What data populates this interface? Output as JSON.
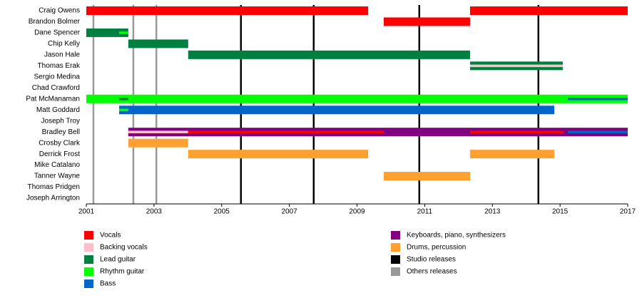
{
  "chart_data": {
    "type": "timeline",
    "xlim": [
      2001,
      2017
    ],
    "xticks": [
      2001,
      2003,
      2005,
      2007,
      2009,
      2011,
      2013,
      2015,
      2017
    ],
    "legend": [
      {
        "name": "Vocals",
        "color": "#ff0000"
      },
      {
        "name": "Backing vocals",
        "color": "#ffc0cb"
      },
      {
        "name": "Lead guitar",
        "color": "#008040"
      },
      {
        "name": "Rhythm guitar",
        "color": "#00ff00"
      },
      {
        "name": "Bass",
        "color": "#0066cc"
      },
      {
        "name": "Keyboards, piano, synthesizers",
        "color": "#800080"
      },
      {
        "name": "Drums, percussion",
        "color": "#ffa030"
      },
      {
        "name": "Studio releases",
        "color": "#000000"
      },
      {
        "name": "Others releases",
        "color": "#999999"
      }
    ],
    "releases": [
      {
        "kind": "Others releases",
        "x": [
          2001.21,
          2002.39,
          2003.07
        ]
      },
      {
        "kind": "Studio releases",
        "x": [
          2005.57,
          2007.72,
          2010.84,
          2014.36
        ]
      }
    ],
    "members": [
      {
        "name": "Craig Owens",
        "periods": [
          {
            "role": "Vocals",
            "start": 2001,
            "end": 2009.33,
            "style": "full"
          },
          {
            "role": "Vocals",
            "start": 2012.34,
            "end": 2017,
            "style": "full"
          }
        ]
      },
      {
        "name": "Brandon Bolmer",
        "periods": [
          {
            "role": "Vocals",
            "start": 2009.79,
            "end": 2012.34,
            "style": "full"
          }
        ]
      },
      {
        "name": "Dane Spencer",
        "periods": [
          {
            "role": "Lead guitar",
            "start": 2001,
            "end": 2002.24,
            "style": "full"
          },
          {
            "role": "Rhythm guitar",
            "start": 2001.97,
            "end": 2002.24,
            "style": "stripe"
          }
        ]
      },
      {
        "name": "Chip Kelly",
        "periods": [
          {
            "role": "Lead guitar",
            "start": 2002.24,
            "end": 2004.01,
            "style": "full"
          }
        ]
      },
      {
        "name": "Jason Hale",
        "periods": [
          {
            "role": "Lead guitar",
            "start": 2004.01,
            "end": 2012.34,
            "style": "full"
          }
        ]
      },
      {
        "name": "Thomas Erak",
        "periods": [
          {
            "role": "Lead guitar",
            "start": 2012.34,
            "end": 2015.08,
            "style": "full"
          },
          {
            "role": "Backing vocals",
            "start": 2012.34,
            "end": 2015.08,
            "style": "stripe"
          }
        ]
      },
      {
        "name": "Sergio Medina",
        "periods": []
      },
      {
        "name": "Chad Crawford",
        "periods": []
      },
      {
        "name": "Pat McManaman",
        "periods": [
          {
            "role": "Rhythm guitar",
            "start": 2001,
            "end": 2017,
            "style": "full"
          },
          {
            "role": "Lead guitar",
            "start": 2001.97,
            "end": 2002.24,
            "style": "stripe"
          },
          {
            "role": "Bass",
            "start": 2015.23,
            "end": 2017,
            "style": "stripe"
          }
        ]
      },
      {
        "name": "Matt Goddard",
        "periods": [
          {
            "role": "Bass",
            "start": 2001.97,
            "end": 2014.83,
            "style": "full"
          },
          {
            "role": "Rhythm guitar",
            "start": 2001.97,
            "end": 2002.24,
            "style": "stripe"
          }
        ]
      },
      {
        "name": "Joseph Troy",
        "periods": []
      },
      {
        "name": "Bradley Bell",
        "periods": [
          {
            "role": "Keyboards, piano, synthesizers",
            "start": 2002.24,
            "end": 2017,
            "style": "full"
          },
          {
            "role": "Backing vocals",
            "start": 2002.24,
            "end": 2004.01,
            "style": "stripe"
          },
          {
            "role": "Vocals",
            "start": 2004.01,
            "end": 2009.79,
            "style": "stripe"
          },
          {
            "role": "Vocals",
            "start": 2012.34,
            "end": 2015.08,
            "style": "stripe"
          },
          {
            "role": "Bass",
            "start": 2015.23,
            "end": 2017,
            "style": "stripe"
          }
        ]
      },
      {
        "name": "Crosby Clark",
        "periods": [
          {
            "role": "Drums, percussion",
            "start": 2002.24,
            "end": 2004.01,
            "style": "full"
          }
        ]
      },
      {
        "name": "Derrick Frost",
        "periods": [
          {
            "role": "Drums, percussion",
            "start": 2004.01,
            "end": 2009.33,
            "style": "full"
          },
          {
            "role": "Drums, percussion",
            "start": 2012.34,
            "end": 2014.83,
            "style": "full"
          }
        ]
      },
      {
        "name": "Mike Catalano",
        "periods": []
      },
      {
        "name": "Tanner Wayne",
        "periods": [
          {
            "role": "Drums, percussion",
            "start": 2009.79,
            "end": 2012.34,
            "style": "full"
          }
        ]
      },
      {
        "name": "Thomas Pridgen",
        "periods": []
      },
      {
        "name": "Joseph Arrington",
        "periods": []
      }
    ]
  }
}
